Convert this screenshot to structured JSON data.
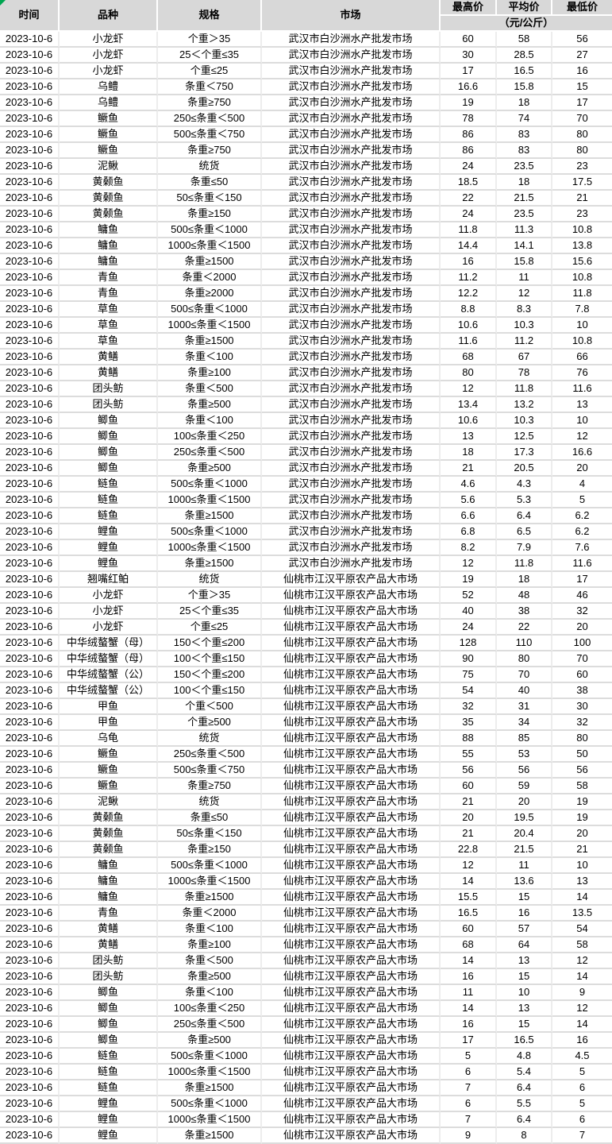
{
  "colors": {
    "header_bg": "#d8d8d8",
    "header_border": "#ffffff",
    "grid_horizontal": "#dcdcdc",
    "grid_vertical": "#ededed",
    "corner_marker_green": "#00a550",
    "text": "#000000"
  },
  "header": {
    "time": "时间",
    "variety": "品种",
    "spec": "规格",
    "market": "市场",
    "high": "最高价",
    "avg": "平均价",
    "low": "最低价",
    "unit": "（元/公斤）"
  },
  "markets": {
    "wuhan": "武汉市白沙洲水产批发市场",
    "xiantao": "仙桃市江汉平原农产品大市场"
  },
  "rows": [
    [
      "2023-10-6",
      "小龙虾",
      "个重＞35",
      "武汉市白沙洲水产批发市场",
      "60",
      "58",
      "56"
    ],
    [
      "2023-10-6",
      "小龙虾",
      "25＜个重≤35",
      "武汉市白沙洲水产批发市场",
      "30",
      "28.5",
      "27"
    ],
    [
      "2023-10-6",
      "小龙虾",
      "个重≤25",
      "武汉市白沙洲水产批发市场",
      "17",
      "16.5",
      "16"
    ],
    [
      "2023-10-6",
      "乌鳢",
      "条重＜750",
      "武汉市白沙洲水产批发市场",
      "16.6",
      "15.8",
      "15"
    ],
    [
      "2023-10-6",
      "乌鳢",
      "条重≥750",
      "武汉市白沙洲水产批发市场",
      "19",
      "18",
      "17"
    ],
    [
      "2023-10-6",
      "鳜鱼",
      "250≤条重＜500",
      "武汉市白沙洲水产批发市场",
      "78",
      "74",
      "70"
    ],
    [
      "2023-10-6",
      "鳜鱼",
      "500≤条重＜750",
      "武汉市白沙洲水产批发市场",
      "86",
      "83",
      "80"
    ],
    [
      "2023-10-6",
      "鳜鱼",
      "条重≥750",
      "武汉市白沙洲水产批发市场",
      "86",
      "83",
      "80"
    ],
    [
      "2023-10-6",
      "泥鳅",
      "统货",
      "武汉市白沙洲水产批发市场",
      "24",
      "23.5",
      "23"
    ],
    [
      "2023-10-6",
      "黄颡鱼",
      "条重≤50",
      "武汉市白沙洲水产批发市场",
      "18.5",
      "18",
      "17.5"
    ],
    [
      "2023-10-6",
      "黄颡鱼",
      "50≤条重＜150",
      "武汉市白沙洲水产批发市场",
      "22",
      "21.5",
      "21"
    ],
    [
      "2023-10-6",
      "黄颡鱼",
      "条重≥150",
      "武汉市白沙洲水产批发市场",
      "24",
      "23.5",
      "23"
    ],
    [
      "2023-10-6",
      "鳙鱼",
      "500≤条重＜1000",
      "武汉市白沙洲水产批发市场",
      "11.8",
      "11.3",
      "10.8"
    ],
    [
      "2023-10-6",
      "鳙鱼",
      "1000≤条重＜1500",
      "武汉市白沙洲水产批发市场",
      "14.4",
      "14.1",
      "13.8"
    ],
    [
      "2023-10-6",
      "鳙鱼",
      "条重≥1500",
      "武汉市白沙洲水产批发市场",
      "16",
      "15.8",
      "15.6"
    ],
    [
      "2023-10-6",
      "青鱼",
      "条重＜2000",
      "武汉市白沙洲水产批发市场",
      "11.2",
      "11",
      "10.8"
    ],
    [
      "2023-10-6",
      "青鱼",
      "条重≥2000",
      "武汉市白沙洲水产批发市场",
      "12.2",
      "12",
      "11.8"
    ],
    [
      "2023-10-6",
      "草鱼",
      "500≤条重＜1000",
      "武汉市白沙洲水产批发市场",
      "8.8",
      "8.3",
      "7.8"
    ],
    [
      "2023-10-6",
      "草鱼",
      "1000≤条重＜1500",
      "武汉市白沙洲水产批发市场",
      "10.6",
      "10.3",
      "10"
    ],
    [
      "2023-10-6",
      "草鱼",
      "条重≥1500",
      "武汉市白沙洲水产批发市场",
      "11.6",
      "11.2",
      "10.8"
    ],
    [
      "2023-10-6",
      "黄鳝",
      "条重＜100",
      "武汉市白沙洲水产批发市场",
      "68",
      "67",
      "66"
    ],
    [
      "2023-10-6",
      "黄鳝",
      "条重≥100",
      "武汉市白沙洲水产批发市场",
      "80",
      "78",
      "76"
    ],
    [
      "2023-10-6",
      "团头鲂",
      "条重＜500",
      "武汉市白沙洲水产批发市场",
      "12",
      "11.8",
      "11.6"
    ],
    [
      "2023-10-6",
      "团头鲂",
      "条重≥500",
      "武汉市白沙洲水产批发市场",
      "13.4",
      "13.2",
      "13"
    ],
    [
      "2023-10-6",
      "鲫鱼",
      "条重＜100",
      "武汉市白沙洲水产批发市场",
      "10.6",
      "10.3",
      "10"
    ],
    [
      "2023-10-6",
      "鲫鱼",
      "100≤条重＜250",
      "武汉市白沙洲水产批发市场",
      "13",
      "12.5",
      "12"
    ],
    [
      "2023-10-6",
      "鲫鱼",
      "250≤条重＜500",
      "武汉市白沙洲水产批发市场",
      "18",
      "17.3",
      "16.6"
    ],
    [
      "2023-10-6",
      "鲫鱼",
      "条重≥500",
      "武汉市白沙洲水产批发市场",
      "21",
      "20.5",
      "20"
    ],
    [
      "2023-10-6",
      "鲢鱼",
      "500≤条重＜1000",
      "武汉市白沙洲水产批发市场",
      "4.6",
      "4.3",
      "4"
    ],
    [
      "2023-10-6",
      "鲢鱼",
      "1000≤条重＜1500",
      "武汉市白沙洲水产批发市场",
      "5.6",
      "5.3",
      "5"
    ],
    [
      "2023-10-6",
      "鲢鱼",
      "条重≥1500",
      "武汉市白沙洲水产批发市场",
      "6.6",
      "6.4",
      "6.2"
    ],
    [
      "2023-10-6",
      "鲤鱼",
      "500≤条重＜1000",
      "武汉市白沙洲水产批发市场",
      "6.8",
      "6.5",
      "6.2"
    ],
    [
      "2023-10-6",
      "鲤鱼",
      "1000≤条重＜1500",
      "武汉市白沙洲水产批发市场",
      "8.2",
      "7.9",
      "7.6"
    ],
    [
      "2023-10-6",
      "鲤鱼",
      "条重≥1500",
      "武汉市白沙洲水产批发市场",
      "12",
      "11.8",
      "11.6"
    ],
    [
      "2023-10-6",
      "翘嘴红鲌",
      "统货",
      "仙桃市江汉平原农产品大市场",
      "19",
      "18",
      "17"
    ],
    [
      "2023-10-6",
      "小龙虾",
      "个重＞35",
      "仙桃市江汉平原农产品大市场",
      "52",
      "48",
      "46"
    ],
    [
      "2023-10-6",
      "小龙虾",
      "25＜个重≤35",
      "仙桃市江汉平原农产品大市场",
      "40",
      "38",
      "32"
    ],
    [
      "2023-10-6",
      "小龙虾",
      "个重≤25",
      "仙桃市江汉平原农产品大市场",
      "24",
      "22",
      "20"
    ],
    [
      "2023-10-6",
      "中华绒螯蟹（母）",
      "150＜个重≤200",
      "仙桃市江汉平原农产品大市场",
      "128",
      "110",
      "100"
    ],
    [
      "2023-10-6",
      "中华绒螯蟹（母）",
      "100＜个重≤150",
      "仙桃市江汉平原农产品大市场",
      "90",
      "80",
      "70"
    ],
    [
      "2023-10-6",
      "中华绒螯蟹（公）",
      "150＜个重≤200",
      "仙桃市江汉平原农产品大市场",
      "75",
      "70",
      "60"
    ],
    [
      "2023-10-6",
      "中华绒螯蟹（公）",
      "100＜个重≤150",
      "仙桃市江汉平原农产品大市场",
      "54",
      "40",
      "38"
    ],
    [
      "2023-10-6",
      "甲鱼",
      "个重＜500",
      "仙桃市江汉平原农产品大市场",
      "32",
      "31",
      "30"
    ],
    [
      "2023-10-6",
      "甲鱼",
      "个重≥500",
      "仙桃市江汉平原农产品大市场",
      "35",
      "34",
      "32"
    ],
    [
      "2023-10-6",
      "乌龟",
      "统货",
      "仙桃市江汉平原农产品大市场",
      "88",
      "85",
      "80"
    ],
    [
      "2023-10-6",
      "鳜鱼",
      "250≤条重＜500",
      "仙桃市江汉平原农产品大市场",
      "55",
      "53",
      "50"
    ],
    [
      "2023-10-6",
      "鳜鱼",
      "500≤条重＜750",
      "仙桃市江汉平原农产品大市场",
      "56",
      "56",
      "56"
    ],
    [
      "2023-10-6",
      "鳜鱼",
      "条重≥750",
      "仙桃市江汉平原农产品大市场",
      "60",
      "59",
      "58"
    ],
    [
      "2023-10-6",
      "泥鳅",
      "统货",
      "仙桃市江汉平原农产品大市场",
      "21",
      "20",
      "19"
    ],
    [
      "2023-10-6",
      "黄颡鱼",
      "条重≤50",
      "仙桃市江汉平原农产品大市场",
      "20",
      "19.5",
      "19"
    ],
    [
      "2023-10-6",
      "黄颡鱼",
      "50≤条重＜150",
      "仙桃市江汉平原农产品大市场",
      "21",
      "20.4",
      "20"
    ],
    [
      "2023-10-6",
      "黄颡鱼",
      "条重≥150",
      "仙桃市江汉平原农产品大市场",
      "22.8",
      "21.5",
      "21"
    ],
    [
      "2023-10-6",
      "鳙鱼",
      "500≤条重＜1000",
      "仙桃市江汉平原农产品大市场",
      "12",
      "11",
      "10"
    ],
    [
      "2023-10-6",
      "鳙鱼",
      "1000≤条重＜1500",
      "仙桃市江汉平原农产品大市场",
      "14",
      "13.6",
      "13"
    ],
    [
      "2023-10-6",
      "鳙鱼",
      "条重≥1500",
      "仙桃市江汉平原农产品大市场",
      "15.5",
      "15",
      "14"
    ],
    [
      "2023-10-6",
      "青鱼",
      "条重＜2000",
      "仙桃市江汉平原农产品大市场",
      "16.5",
      "16",
      "13.5"
    ],
    [
      "2023-10-6",
      "黄鳝",
      "条重＜100",
      "仙桃市江汉平原农产品大市场",
      "60",
      "57",
      "54"
    ],
    [
      "2023-10-6",
      "黄鳝",
      "条重≥100",
      "仙桃市江汉平原农产品大市场",
      "68",
      "64",
      "58"
    ],
    [
      "2023-10-6",
      "团头鲂",
      "条重＜500",
      "仙桃市江汉平原农产品大市场",
      "14",
      "13",
      "12"
    ],
    [
      "2023-10-6",
      "团头鲂",
      "条重≥500",
      "仙桃市江汉平原农产品大市场",
      "16",
      "15",
      "14"
    ],
    [
      "2023-10-6",
      "鲫鱼",
      "条重＜100",
      "仙桃市江汉平原农产品大市场",
      "11",
      "10",
      "9"
    ],
    [
      "2023-10-6",
      "鲫鱼",
      "100≤条重＜250",
      "仙桃市江汉平原农产品大市场",
      "14",
      "13",
      "12"
    ],
    [
      "2023-10-6",
      "鲫鱼",
      "250≤条重＜500",
      "仙桃市江汉平原农产品大市场",
      "16",
      "15",
      "14"
    ],
    [
      "2023-10-6",
      "鲫鱼",
      "条重≥500",
      "仙桃市江汉平原农产品大市场",
      "17",
      "16.5",
      "16"
    ],
    [
      "2023-10-6",
      "鲢鱼",
      "500≤条重＜1000",
      "仙桃市江汉平原农产品大市场",
      "5",
      "4.8",
      "4.5"
    ],
    [
      "2023-10-6",
      "鲢鱼",
      "1000≤条重＜1500",
      "仙桃市江汉平原农产品大市场",
      "6",
      "5.4",
      "5"
    ],
    [
      "2023-10-6",
      "鲢鱼",
      "条重≥1500",
      "仙桃市江汉平原农产品大市场",
      "7",
      "6.4",
      "6"
    ],
    [
      "2023-10-6",
      "鲤鱼",
      "500≤条重＜1000",
      "仙桃市江汉平原农产品大市场",
      "6",
      "5.5",
      "5"
    ],
    [
      "2023-10-6",
      "鲤鱼",
      "1000≤条重＜1500",
      "仙桃市江汉平原农产品大市场",
      "7",
      "6.4",
      "6"
    ],
    [
      "2023-10-6",
      "鲤鱼",
      "条重≥1500",
      "仙桃市江汉平原农产品大市场",
      "9",
      "8",
      "7"
    ]
  ],
  "cell_names": [
    "date-cell",
    "variety-cell",
    "spec-cell",
    "market-cell",
    "high-price-cell",
    "avg-price-cell",
    "low-price-cell"
  ]
}
